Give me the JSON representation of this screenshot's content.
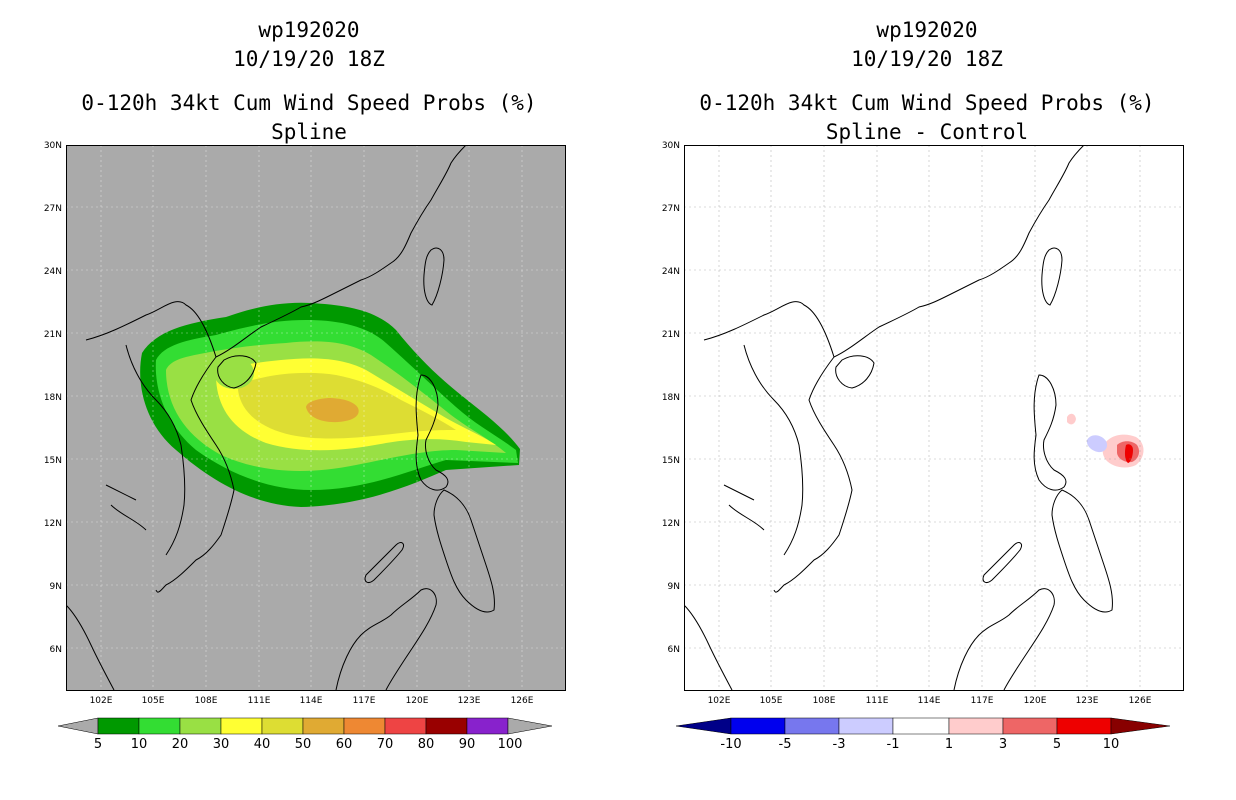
{
  "left_panel": {
    "storm_id": "wp192020",
    "datetime": "10/19/20 18Z",
    "product": "0-120h 34kt Cum Wind Speed Probs (%)",
    "subtitle": "Spline",
    "lat_labels": [
      "30N",
      "27N",
      "24N",
      "21N",
      "18N",
      "15N",
      "12N",
      "9N",
      "6N"
    ],
    "lon_labels": [
      "102E",
      "105E",
      "108E",
      "111E",
      "114E",
      "117E",
      "120E",
      "123E",
      "126E"
    ],
    "colorbar": {
      "labels": [
        "5",
        "10",
        "20",
        "30",
        "40",
        "50",
        "60",
        "70",
        "80",
        "90",
        "100"
      ],
      "colors": [
        "#009900",
        "#33dd33",
        "#99e044",
        "#ffff33",
        "#dddd33",
        "#e0aa33",
        "#ee8833",
        "#ee4444",
        "#990000",
        "#8822cc"
      ],
      "extend_color": "#aaaaaa"
    },
    "background_color": "#aaaaaa"
  },
  "right_panel": {
    "storm_id": "wp192020",
    "datetime": "10/19/20 18Z",
    "product": "0-120h 34kt Cum Wind Speed Probs (%)",
    "subtitle": "Spline - Control",
    "lat_labels": [
      "30N",
      "27N",
      "24N",
      "21N",
      "18N",
      "15N",
      "12N",
      "9N",
      "6N"
    ],
    "lon_labels": [
      "102E",
      "105E",
      "108E",
      "111E",
      "114E",
      "117E",
      "120E",
      "123E",
      "126E"
    ],
    "colorbar": {
      "labels": [
        "-10",
        "-5",
        "-3",
        "-1",
        "1",
        "3",
        "5",
        "10"
      ],
      "colors": [
        "#0000bb",
        "#3333ee",
        "#7777ee",
        "#ccccff",
        "#ffffff",
        "#ffcccc",
        "#ee6666",
        "#ee0000"
      ],
      "extend_low": "#000088",
      "extend_high": "#880000"
    },
    "background_color": "#ffffff"
  }
}
